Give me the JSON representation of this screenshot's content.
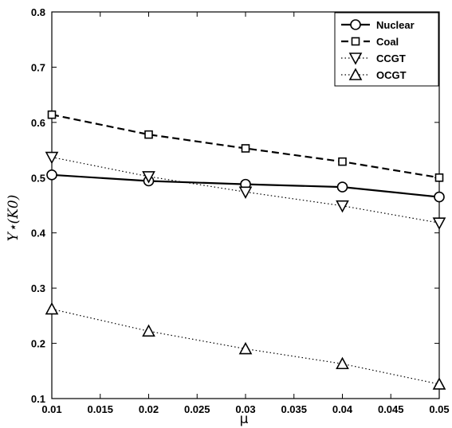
{
  "chart_data": {
    "type": "line",
    "xlabel": "μ",
    "ylabel": "Y⋆(K0)",
    "xlim": [
      0.01,
      0.05
    ],
    "ylim": [
      0.1,
      0.8
    ],
    "x_ticks": [
      0.01,
      0.015,
      0.02,
      0.025,
      0.03,
      0.035,
      0.04,
      0.045,
      0.05
    ],
    "x_tick_labels": [
      "0.01",
      "0.015",
      "0.02",
      "0.025",
      "0.03",
      "0.035",
      "0.04",
      "0.045",
      "0.05"
    ],
    "y_ticks": [
      0.1,
      0.2,
      0.3,
      0.4,
      0.5,
      0.6,
      0.7,
      0.8
    ],
    "y_tick_labels": [
      "0.1",
      "0.2",
      "0.3",
      "0.4",
      "0.5",
      "0.6",
      "0.7",
      "0.8"
    ],
    "grid": false,
    "legend_position": "top-right",
    "series": [
      {
        "name": "Nuclear",
        "line_style": "solid",
        "marker": "circle",
        "x": [
          0.01,
          0.02,
          0.03,
          0.04,
          0.05
        ],
        "values": [
          0.505,
          0.494,
          0.488,
          0.483,
          0.465
        ]
      },
      {
        "name": "Coal",
        "line_style": "dashed",
        "marker": "square",
        "x": [
          0.01,
          0.02,
          0.03,
          0.04,
          0.05
        ],
        "values": [
          0.614,
          0.578,
          0.553,
          0.529,
          0.5
        ]
      },
      {
        "name": "CCGT",
        "line_style": "dotted",
        "marker": "triangle-down",
        "x": [
          0.01,
          0.02,
          0.03,
          0.04,
          0.05
        ],
        "values": [
          0.537,
          0.502,
          0.474,
          0.449,
          0.418
        ]
      },
      {
        "name": "OCGT",
        "line_style": "dotted",
        "marker": "triangle-up",
        "x": [
          0.01,
          0.02,
          0.03,
          0.04,
          0.05
        ],
        "values": [
          0.262,
          0.222,
          0.19,
          0.163,
          0.126
        ]
      }
    ]
  }
}
